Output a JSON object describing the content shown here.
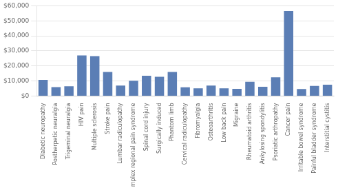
{
  "chart_data": {
    "type": "bar",
    "categories": [
      "Diabetic neuropathy",
      "Postherpetic neuralgia",
      "Trigeminal neuralgia",
      "HIV pain",
      "Multiple sclerosis",
      "Stroke pain",
      "Lumbar radiculopathy",
      "Complex regional pain syndrome",
      "Spinal cord injury",
      "Surgically induced",
      "Phantom limb",
      "Cervical radiculopathy",
      "Fibromyalgia",
      "Osteoarthritis",
      "Low back pain",
      "Migraine",
      "Rheumatoid arthritis",
      "Ankylosing spondylitis",
      "Psoriatic arthropathy",
      "Cancer pain",
      "Irritable bowel syndrome",
      "Painful bladder syndrome",
      "Interstitial cystitis"
    ],
    "values": [
      10700,
      6000,
      6500,
      27000,
      26500,
      16000,
      7000,
      10200,
      13500,
      12800,
      16000,
      5800,
      5200,
      7000,
      5200,
      4800,
      9500,
      6200,
      12500,
      56500,
      4700,
      6800,
      7500
    ],
    "color": "#5b7eb5",
    "ylim": [
      0,
      60000
    ],
    "yticks": [
      {
        "value": 0,
        "label": "$0"
      },
      {
        "value": 10000,
        "label": "$10,000"
      },
      {
        "value": 20000,
        "label": "$20,000"
      },
      {
        "value": 30000,
        "label": "$30,000"
      },
      {
        "value": 40000,
        "label": "$40,000"
      },
      {
        "value": 50000,
        "label": "$50,000"
      },
      {
        "value": 60000,
        "label": "$60,000"
      }
    ],
    "grid": true
  }
}
